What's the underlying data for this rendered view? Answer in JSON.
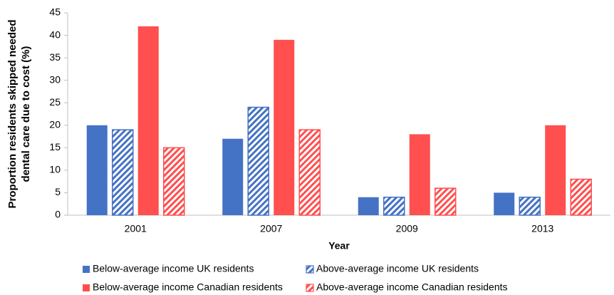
{
  "chart_data": {
    "type": "bar",
    "ylabel": [
      "Proportion residents skipped needed",
      "dental care due to cost (%)"
    ],
    "xlabel": "Year",
    "categories": [
      "2001",
      "2007",
      "2009",
      "2013"
    ],
    "series": [
      {
        "name": "Below-average income UK residents",
        "color": "#4472c4",
        "hatch": false,
        "values": [
          20,
          17,
          4,
          5
        ]
      },
      {
        "name": "Above-average income UK residents",
        "color": "#4472c4",
        "hatch": true,
        "values": [
          19,
          24,
          4,
          4
        ]
      },
      {
        "name": "Below-average income Canadian residents",
        "color": "#ff4f4f",
        "hatch": false,
        "values": [
          42,
          39,
          18,
          20
        ]
      },
      {
        "name": "Above-average income Canadian residents",
        "color": "#ff4f4f",
        "hatch": true,
        "values": [
          15,
          19,
          6,
          8
        ]
      }
    ],
    "ylim": [
      0,
      45
    ],
    "yticks": [
      0,
      5,
      10,
      15,
      20,
      25,
      30,
      35,
      40,
      45
    ],
    "grid": false,
    "legend": "bottom"
  }
}
